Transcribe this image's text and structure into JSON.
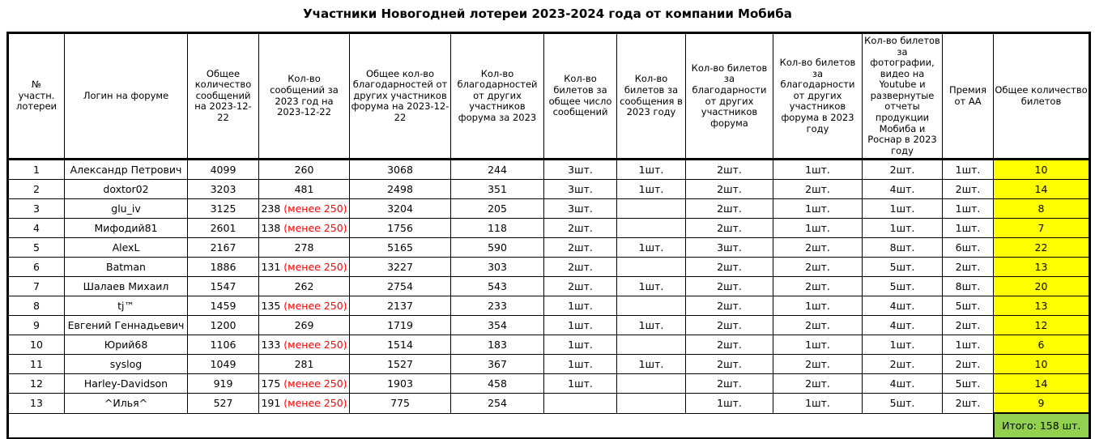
{
  "title": "Участники Новогодней лотереи 2023-2024 года от компании Мобиба",
  "colors": {
    "highlight_yellow": "#ffff00",
    "total_green": "#92d050",
    "note_red": "#ff0000",
    "border_black": "#000000"
  },
  "chart_data": {
    "type": "table",
    "title": "Участники Новогодней лотереи 2023-2024 года от компании Мобиба",
    "columns": [
      "№\nучастн.\nлотереи",
      "Логин на форуме",
      "Общее количество сообщений на 2023-12-22",
      "Кол-во сообщений за 2023 год на 2023-12-22",
      "Общее кол-во благодарностей от других участников форума на 2023-12-22",
      "Кол-во благодарностей от других участников форума за 2023",
      "Кол-во билетов за общее число сообщений",
      "Кол-во билетов за сообщения в 2023 году",
      "Кол-во билетов за благодарности от других участников форума",
      "Кол-во билетов за благодарности от других участников форума в 2023 году",
      "Кол-во билетов за фотографии, видео на Youtube и развернутые отчеты продукции Мобиба и Роснар в 2023 году",
      "Премия от АА",
      "Общее количество билетов"
    ],
    "column_ids": [
      "num",
      "login",
      "total-msgs",
      "msgs-2023",
      "total-thanks",
      "thanks-2023",
      "tickets-total-msgs",
      "tickets-msgs-2023",
      "tickets-thanks",
      "tickets-thanks-2023",
      "tickets-media",
      "premium-aa",
      "total-tickets"
    ],
    "rows": [
      [
        "1",
        "Александр Петрович",
        "4099",
        "260",
        "3068",
        "244",
        "3шт.",
        "1шт.",
        "2шт.",
        "1шт.",
        "2шт.",
        "1шт.",
        "10"
      ],
      [
        "2",
        "doxtor02",
        "3203",
        "481",
        "2498",
        "351",
        "3шт.",
        "1шт.",
        "2шт.",
        "2шт.",
        "4шт.",
        "2шт.",
        "14"
      ],
      [
        "3",
        "glu_iv",
        "3125",
        {
          "text": "238",
          "note": "(менее 250)"
        },
        "3204",
        "205",
        "3шт.",
        "",
        "2шт.",
        "1шт.",
        "1шт.",
        "1шт.",
        "8"
      ],
      [
        "4",
        "Мифодий81",
        "2601",
        {
          "text": "138",
          "note": "(менее 250)"
        },
        "1756",
        "118",
        "2шт.",
        "",
        "2шт.",
        "1шт.",
        "1шт.",
        "1шт.",
        "7"
      ],
      [
        "5",
        "AlexL",
        "2167",
        "278",
        "5165",
        "590",
        "2шт.",
        "1шт.",
        "3шт.",
        "2шт.",
        "8шт.",
        "6шт.",
        "22"
      ],
      [
        "6",
        "Batman",
        "1886",
        {
          "text": "131",
          "note": "(менее 250)"
        },
        "3227",
        "303",
        "2шт.",
        "",
        "2шт.",
        "2шт.",
        "5шт.",
        "2шт.",
        "13"
      ],
      [
        "7",
        "Шалаев Михаил",
        "1547",
        "262",
        "2754",
        "543",
        "2шт.",
        "1шт.",
        "2шт.",
        "2шт.",
        "5шт.",
        "8шт.",
        "20"
      ],
      [
        "8",
        "tj™",
        "1459",
        {
          "text": "135",
          "note": "(менее 250)"
        },
        "2137",
        "233",
        "1шт.",
        "",
        "2шт.",
        "1шт.",
        "4шт.",
        "5шт.",
        "13"
      ],
      [
        "9",
        "Евгений Геннадьевич",
        "1200",
        "269",
        "1719",
        "354",
        "1шт.",
        "1шт.",
        "2шт.",
        "2шт.",
        "4шт.",
        "2шт.",
        "12"
      ],
      [
        "10",
        "Юрий68",
        "1106",
        {
          "text": "133",
          "note": "(менее 250)"
        },
        "1514",
        "183",
        "1шт.",
        "",
        "2шт.",
        "1шт.",
        "1шт.",
        "1шт.",
        "6"
      ],
      [
        "11",
        "syslog",
        "1049",
        "281",
        "1527",
        "367",
        "1шт.",
        "1шт.",
        "2шт.",
        "2шт.",
        "2шт.",
        "2шт.",
        "10"
      ],
      [
        "12",
        "Harley-Davidson",
        "919",
        {
          "text": "175",
          "note": "(менее 250)"
        },
        "1903",
        "458",
        "1шт.",
        "",
        "2шт.",
        "2шт.",
        "4шт.",
        "5шт.",
        "14"
      ],
      [
        "13",
        "^Илья^",
        "527",
        {
          "text": "191",
          "note": "(менее 250)"
        },
        "775",
        "254",
        "",
        "",
        "1шт.",
        "1шт.",
        "5шт.",
        "2шт.",
        "9"
      ]
    ],
    "footer_total": "Итого: 158 шт.",
    "layout_hints": {
      "highlight_column": "total-tickets",
      "note_meaning": "posts in 2023 below 250 threshold, shown in red"
    }
  }
}
